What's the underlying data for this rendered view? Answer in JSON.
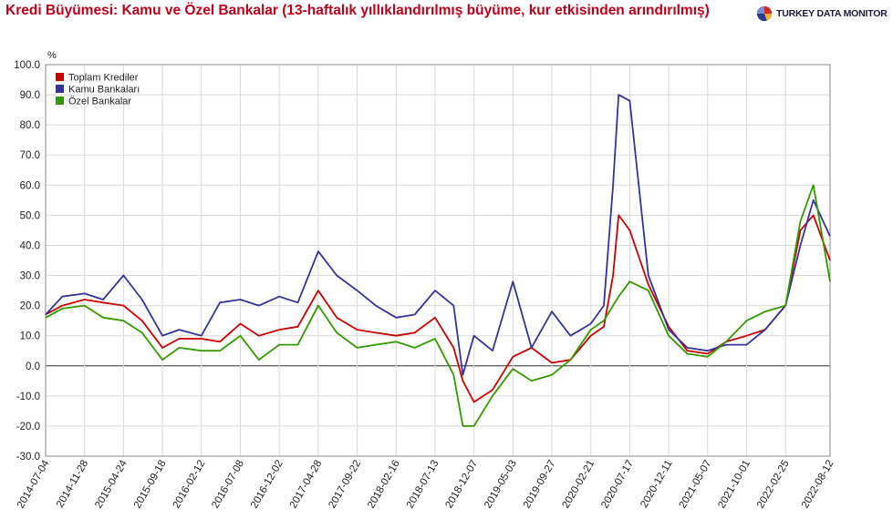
{
  "header": {
    "title": "Kredi Büyümesi: Kamu ve Özel Bankalar (13-haftalık yıllıklandırılmış büyüme, kur etkisinden arındırılmış)",
    "brand": "TURKEY DATA MONITOR",
    "brand_logo_icon": "pie-chart-icon"
  },
  "chart_data": {
    "type": "line",
    "title": "Kredi Büyümesi: Kamu ve Özel Bankalar (13-haftalık yıllıklandırılmış büyüme, kur etkisinden arındırılmış)",
    "ylabel": "%",
    "xlabel": "",
    "ylim": [
      -30,
      100
    ],
    "yticks": [
      "100.0",
      "90.0",
      "80.0",
      "70.0",
      "60.0",
      "50.0",
      "40.0",
      "30.0",
      "20.0",
      "10.0",
      "0.0",
      "-10.0",
      "-20.0",
      "-30.0"
    ],
    "xticks": [
      "2014-07-04",
      "2014-11-28",
      "2015-04-24",
      "2015-09-18",
      "2016-02-12",
      "2016-07-08",
      "2016-12-02",
      "2017-04-28",
      "2017-09-22",
      "2018-02-16",
      "2018-07-13",
      "2018-12-07",
      "2019-05-03",
      "2019-09-27",
      "2020-02-21",
      "2020-07-17",
      "2020-12-11",
      "2021-05-07",
      "2021-10-01",
      "2022-02-25",
      "2022-08-12"
    ],
    "grid": true,
    "legend_position": "top-left",
    "x": [
      "2014-07-04",
      "2014-09-05",
      "2014-11-28",
      "2015-02-06",
      "2015-04-24",
      "2015-07-03",
      "2015-09-18",
      "2015-11-20",
      "2016-02-12",
      "2016-04-22",
      "2016-07-08",
      "2016-09-16",
      "2016-12-02",
      "2017-02-10",
      "2017-04-28",
      "2017-07-07",
      "2017-09-22",
      "2017-12-01",
      "2018-02-16",
      "2018-04-27",
      "2018-07-13",
      "2018-09-21",
      "2018-10-26",
      "2018-12-07",
      "2019-02-15",
      "2019-05-03",
      "2019-07-12",
      "2019-09-27",
      "2019-12-06",
      "2020-02-21",
      "2020-04-10",
      "2020-05-15",
      "2020-06-05",
      "2020-07-17",
      "2020-09-25",
      "2020-12-11",
      "2021-02-19",
      "2021-05-07",
      "2021-07-16",
      "2021-10-01",
      "2021-12-10",
      "2022-02-25",
      "2022-04-22",
      "2022-06-10",
      "2022-08-12"
    ],
    "series": [
      {
        "name": "Toplam Krediler",
        "color": "#cc0000",
        "values": [
          17,
          20,
          22,
          21,
          20,
          15,
          6,
          9,
          9,
          8,
          14,
          10,
          12,
          13,
          25,
          16,
          12,
          11,
          10,
          11,
          16,
          6,
          -5,
          -12,
          -8,
          3,
          6,
          1,
          2,
          10,
          13,
          30,
          50,
          45,
          27,
          13,
          5,
          4,
          8,
          10,
          12,
          20,
          45,
          50,
          35
        ]
      },
      {
        "name": "Kamu Bankaları",
        "color": "#333399",
        "values": [
          17,
          23,
          24,
          22,
          30,
          22,
          10,
          12,
          10,
          21,
          22,
          20,
          23,
          21,
          38,
          30,
          25,
          20,
          16,
          17,
          25,
          20,
          -3,
          10,
          5,
          28,
          6,
          18,
          10,
          14,
          20,
          60,
          90,
          88,
          30,
          12,
          6,
          5,
          7,
          7,
          12,
          20,
          40,
          55,
          43
        ]
      },
      {
        "name": "Özel Bankalar",
        "color": "#339900",
        "values": [
          16,
          19,
          20,
          16,
          15,
          11,
          2,
          6,
          5,
          5,
          10,
          2,
          7,
          7,
          20,
          11,
          6,
          7,
          8,
          6,
          9,
          -3,
          -20,
          -20,
          -10,
          -1,
          -5,
          -3,
          2,
          12,
          15,
          20,
          23,
          28,
          25,
          10,
          4,
          3,
          8,
          15,
          18,
          20,
          48,
          60,
          28
        ]
      }
    ]
  }
}
